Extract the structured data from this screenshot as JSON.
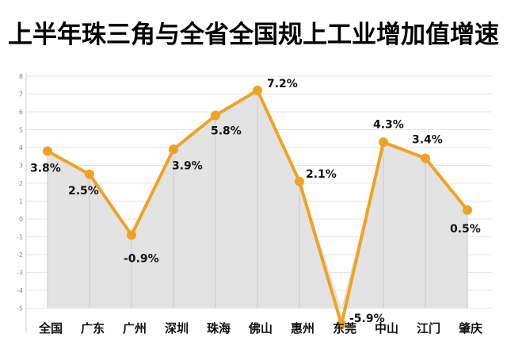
{
  "title": "上半年珠三角与全省全国规上工业增加值增速",
  "colors": {
    "line": "#F0A223",
    "area": "#E3E3E3",
    "grid": "#E6E6E6",
    "axis": "#D0D0D0"
  },
  "chart_data": {
    "type": "area",
    "title": "上半年珠三角与全省全国规上工业增加值增速",
    "xlabel": "",
    "ylabel": "",
    "categories": [
      "全国",
      "广东",
      "广州",
      "深圳",
      "珠海",
      "佛山",
      "惠州",
      "东莞",
      "中山",
      "江门",
      "肇庆"
    ],
    "values": [
      3.8,
      2.5,
      -0.9,
      3.9,
      5.8,
      7.2,
      2.1,
      -5.9,
      4.3,
      3.4,
      0.5
    ],
    "labels": [
      "3.8%",
      "2.5%",
      "-0.9%",
      "3.9%",
      "5.8%",
      "7.2%",
      "2.1%",
      "-5.9%",
      "4.3%",
      "3.4%",
      "0.5%"
    ],
    "yticks": [
      8,
      7,
      6,
      5,
      4,
      3,
      2,
      1,
      0,
      -1,
      -2,
      -3,
      -4,
      -5
    ],
    "ylim": [
      -5,
      8
    ],
    "grid": true,
    "legend": "none",
    "units": "%"
  }
}
